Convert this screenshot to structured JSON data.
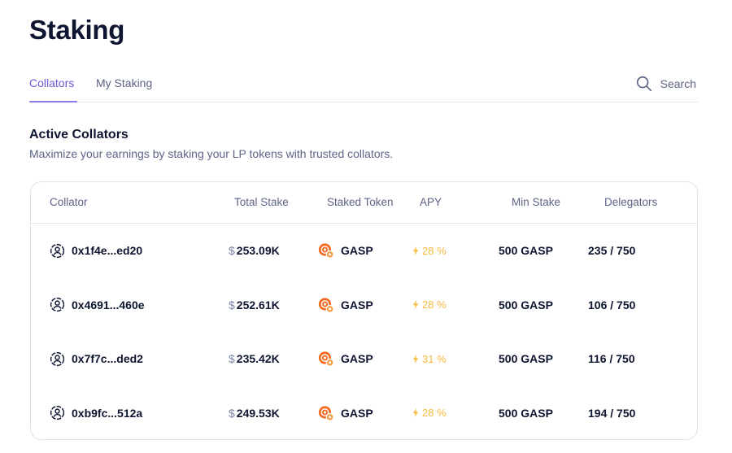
{
  "page": {
    "title": "Staking"
  },
  "tabs": [
    {
      "label": "Collators",
      "active": true
    },
    {
      "label": "My Staking",
      "active": false
    }
  ],
  "search": {
    "label": "Search",
    "icon": "search-icon"
  },
  "section": {
    "title": "Active Collators",
    "subtitle": "Maximize your earnings by staking your LP tokens with trusted collators."
  },
  "table": {
    "headers": {
      "collator": "Collator",
      "total_stake": "Total Stake",
      "staked_token": "Staked Token",
      "apy": "APY",
      "min_stake": "Min Stake",
      "delegators": "Delegators"
    },
    "rows": [
      {
        "address": "0x1f4e...ed20",
        "total_stake": "253.09K",
        "token": "GASP",
        "apy": "28 %",
        "min_stake": "500 GASP",
        "delegators": "235 / 750"
      },
      {
        "address": "0x4691...460e",
        "total_stake": "252.61K",
        "token": "GASP",
        "apy": "28 %",
        "min_stake": "500 GASP",
        "delegators": "106 / 750"
      },
      {
        "address": "0x7f7c...ded2",
        "total_stake": "235.42K",
        "token": "GASP",
        "apy": "31 %",
        "min_stake": "500 GASP",
        "delegators": "116 / 750"
      },
      {
        "address": "0xb9fc...512a",
        "total_stake": "249.53K",
        "token": "GASP",
        "apy": "28 %",
        "min_stake": "500 GASP",
        "delegators": "194 / 750"
      }
    ]
  },
  "colors": {
    "accent": "#6b5bd6",
    "apy": "#f5b93b",
    "token": "#f26b21",
    "text": "#0d1530",
    "muted": "#5c6486"
  },
  "currency_symbol": "$"
}
